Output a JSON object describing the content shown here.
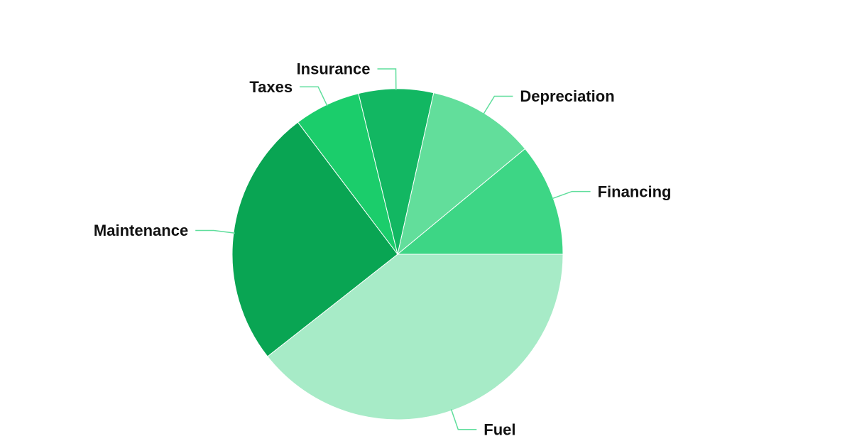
{
  "chart_data": {
    "type": "pie",
    "title": "",
    "start_angle_deg": 0,
    "direction": "clockwise",
    "slices": [
      {
        "label": "Fuel",
        "value": 39.4,
        "color": "#a7ebc7"
      },
      {
        "label": "Maintenance",
        "value": 25.3,
        "color": "#09a553"
      },
      {
        "label": "Taxes",
        "value": 6.5,
        "color": "#1bcd6b"
      },
      {
        "label": "Insurance",
        "value": 7.3,
        "color": "#12b762"
      },
      {
        "label": "Depreciation",
        "value": 10.5,
        "color": "#62de9b"
      },
      {
        "label": "Financing",
        "value": 11.0,
        "color": "#3dd685"
      }
    ]
  },
  "colors": {
    "leader_line": "#5fde9c",
    "label_text": "#111111",
    "slice_border": "#ffffff"
  }
}
